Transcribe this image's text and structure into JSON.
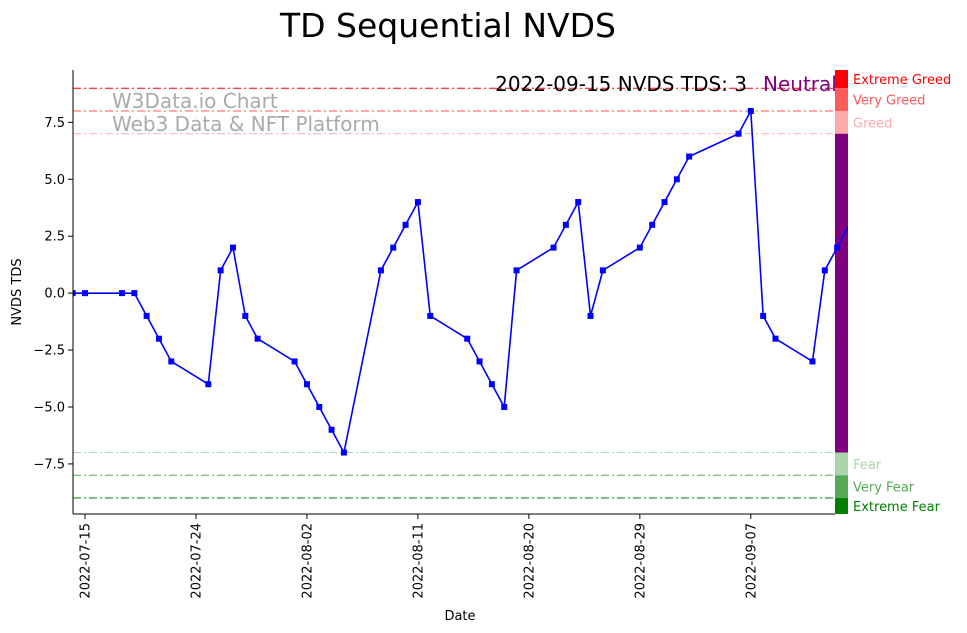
{
  "chart_data": {
    "type": "line",
    "title": "TD Sequential NVDS",
    "xlabel": "Date",
    "ylabel": "NVDS TDS",
    "ylim": [
      -9.7,
      9.8
    ],
    "x_range_days": [
      -1,
      62
    ],
    "x_ticks": [
      {
        "day": 0,
        "label": "2022-07-15"
      },
      {
        "day": 9,
        "label": "2022-07-24"
      },
      {
        "day": 18,
        "label": "2022-08-02"
      },
      {
        "day": 27,
        "label": "2022-08-11"
      },
      {
        "day": 36,
        "label": "2022-08-20"
      },
      {
        "day": 45,
        "label": "2022-08-29"
      },
      {
        "day": 54,
        "label": "2022-09-07"
      }
    ],
    "y_ticks": [
      {
        "value": 7.5,
        "label": "7.5"
      },
      {
        "value": 5,
        "label": "5.0"
      },
      {
        "value": 2.5,
        "label": "2.5"
      },
      {
        "value": 0,
        "label": "0.0"
      },
      {
        "value": -2.5,
        "label": "−2.5"
      },
      {
        "value": -5,
        "label": "−5.0"
      },
      {
        "value": -7.5,
        "label": "−7.5"
      }
    ],
    "series": [
      {
        "name": "NVDS TDS",
        "color": "#0000ff",
        "x": [
          -1,
          0,
          3,
          4,
          5,
          6,
          7,
          10,
          11,
          12,
          13,
          14,
          17,
          18,
          19,
          20,
          21,
          24,
          25,
          26,
          27,
          28,
          31,
          32,
          33,
          34,
          35,
          38,
          39,
          40,
          41,
          42,
          45,
          46,
          47,
          48,
          49,
          53,
          54,
          55,
          56,
          59,
          60,
          61,
          62
        ],
        "values": [
          0,
          0,
          0,
          0,
          -1,
          -2,
          -3,
          -4,
          1,
          2,
          -1,
          -2,
          -3,
          -4,
          -5,
          -6,
          -7,
          1,
          2,
          3,
          4,
          -1,
          -2,
          -3,
          -4,
          -5,
          1,
          2,
          3,
          4,
          -1,
          1,
          2,
          3,
          4,
          5,
          6,
          7,
          8,
          -1,
          -2,
          -3,
          1,
          2,
          3
        ],
        "marker_until_index": 43
      }
    ],
    "reference_lines": [
      {
        "value": 9,
        "color": "#ff0000"
      },
      {
        "value": 8,
        "color": "#ff5a5a"
      },
      {
        "value": 7,
        "color": "#ffaaaa"
      },
      {
        "value": -7,
        "color": "#aad4aa"
      },
      {
        "value": -8,
        "color": "#55aa55"
      },
      {
        "value": -9,
        "color": "#008000"
      }
    ],
    "sentiment_bands": [
      {
        "label": "Extreme Greed",
        "from": 9,
        "to": 10,
        "color": "#ff0000"
      },
      {
        "label": "Very Greed",
        "from": 8,
        "to": 9,
        "color": "#ff5a5a"
      },
      {
        "label": "Greed",
        "from": 7,
        "to": 8,
        "color": "#ffaaaa"
      },
      {
        "label": "",
        "from": -7,
        "to": 7,
        "color": "#800080"
      },
      {
        "label": "Fear",
        "from": -8,
        "to": -7,
        "color": "#aad4aa"
      },
      {
        "label": "Very Fear",
        "from": -9,
        "to": -8,
        "color": "#55aa55"
      },
      {
        "label": "Extreme Fear",
        "from": -10,
        "to": -9,
        "color": "#008000"
      }
    ],
    "annotation": {
      "text": "2022-09-15 NVDS TDS: 3",
      "state": "Neutral",
      "state_color": "#800080"
    },
    "watermark": [
      "W3Data.io Chart",
      "Web3 Data & NFT Platform"
    ]
  }
}
